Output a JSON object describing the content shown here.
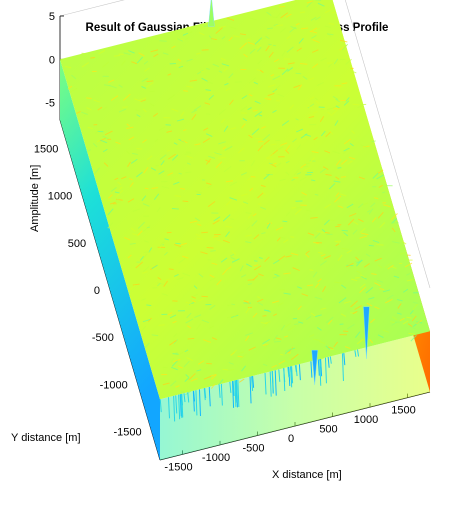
{
  "chart_data": {
    "type": "surface",
    "title": "Result of Gaussian Filtered Surface: Roughness Profile",
    "xlabel": "X distance [m]",
    "ylabel": "Y distance [m]",
    "zlabel": "Amplitude [m]",
    "xlim": [
      -1800,
      1800
    ],
    "ylim": [
      -1800,
      1800
    ],
    "zlim": [
      -7,
      5
    ],
    "x_ticks": [
      -1500,
      -1000,
      -500,
      0,
      500,
      1000,
      1500
    ],
    "x_tick_labels": [
      "-1500",
      "-1000",
      "-500",
      "0",
      "500",
      "1000",
      "1500"
    ],
    "y_ticks": [
      -1500,
      -1000,
      -500,
      0,
      500,
      1000,
      1500
    ],
    "y_tick_labels": [
      "-1500",
      "-1000",
      "-500",
      "0",
      "500",
      "1000",
      "1500"
    ],
    "z_ticks": [
      5,
      0,
      -5
    ],
    "z_tick_labels": [
      "5",
      "0",
      "-5"
    ],
    "colormap": "jet",
    "surface_base_level": 0,
    "edge_drop_level": -7,
    "features": [
      {
        "kind": "spike",
        "x": 200,
        "y": 1750,
        "z": 3.5
      },
      {
        "kind": "pit",
        "x": 1100,
        "y": -1400,
        "z": -6
      },
      {
        "kind": "pit",
        "x": 300,
        "y": -1700,
        "z": -4
      }
    ],
    "grid": true
  }
}
